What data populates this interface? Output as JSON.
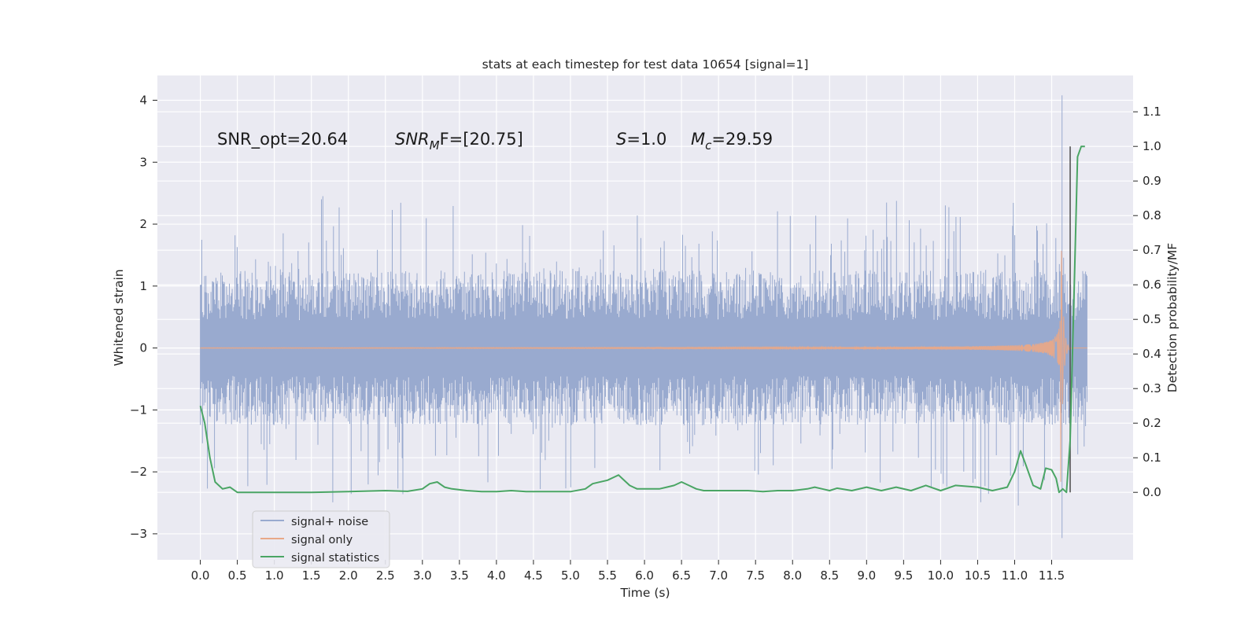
{
  "chart_data": {
    "type": "line",
    "title": "stats at each timestep for test data 10654 [signal=1]",
    "xlabel": "Time (s)",
    "ylabel_left": "Whitened strain",
    "ylabel_right": "Detection probability/MF",
    "xlim": [
      -0.58,
      12.6
    ],
    "ylim_left": [
      -3.42,
      4.4
    ],
    "ylim_right": [
      -0.195,
      1.205
    ],
    "grid": true,
    "legend_position": "lower-left",
    "x_ticks": [
      0.0,
      0.5,
      1.0,
      1.5,
      2.0,
      2.5,
      3.0,
      3.5,
      4.0,
      4.5,
      5.0,
      5.5,
      6.0,
      6.5,
      7.0,
      7.5,
      8.0,
      8.5,
      9.0,
      9.5,
      10.0,
      10.5,
      11.0,
      11.5
    ],
    "x_tick_labels": [
      "0.0",
      "0.5",
      "1.0",
      "1.5",
      "2.0",
      "2.5",
      "3.0",
      "3.5",
      "4.0",
      "4.5",
      "5.0",
      "5.5",
      "6.0",
      "6.5",
      "7.0",
      "7.5",
      "8.0",
      "8.5",
      "9.0",
      "9.5",
      "10.0",
      "10.5",
      "11.0",
      "11.5"
    ],
    "y_left_ticks": [
      -3,
      -2,
      -1,
      0,
      1,
      2,
      3,
      4
    ],
    "y_left_tick_labels": [
      "−3",
      "−2",
      "−1",
      "0",
      "1",
      "2",
      "3",
      "4"
    ],
    "y_right_ticks": [
      0.0,
      0.1,
      0.2,
      0.3,
      0.4,
      0.5,
      0.6,
      0.7,
      0.8,
      0.9,
      1.0,
      1.1
    ],
    "y_right_tick_labels": [
      "0.0",
      "0.1",
      "0.2",
      "0.3",
      "0.4",
      "0.5",
      "0.6",
      "0.7",
      "0.8",
      "0.9",
      "1.0",
      "1.1"
    ],
    "annotations": {
      "snr_opt": "SNR_opt=20.64",
      "snr_mf_label": "SNR",
      "snr_mf_sub": "M",
      "snr_mf_tail": "F=[20.75]",
      "s_label": "S",
      "s_tail": "=1.0",
      "mc_label": "M",
      "mc_sub": "c",
      "mc_tail": "=29.59"
    },
    "series": [
      {
        "name": "signal+ noise",
        "axis": "left",
        "color": "#99aacf",
        "x_range": [
          0.0,
          11.98
        ],
        "envelope": [
          [
            -2.3,
            1.9
          ],
          [
            -2.5,
            2.5
          ],
          [
            -2.5,
            2.3
          ],
          [
            -2.3,
            2.2
          ],
          [
            -2.0,
            2.0
          ],
          [
            -2.3,
            2.3
          ],
          [
            -2.4,
            2.4
          ],
          [
            -2.6,
            2.4
          ]
        ],
        "peak_max": 4.08,
        "peak_min": -3.07,
        "peak_time": 11.64
      },
      {
        "name": "signal only",
        "axis": "left",
        "color": "#e8a888",
        "x_range": [
          0.0,
          11.98
        ],
        "peak_max": 3.1,
        "peak_min": -2.8,
        "peak_time": 11.62
      },
      {
        "name": "signal statistics",
        "axis": "right",
        "color": "#4aa564",
        "x": [
          0.0,
          0.06,
          0.13,
          0.2,
          0.3,
          0.4,
          0.5,
          0.7,
          1.0,
          1.5,
          2.0,
          2.5,
          2.8,
          3.0,
          3.1,
          3.2,
          3.3,
          3.4,
          3.6,
          3.8,
          4.0,
          4.2,
          4.4,
          4.6,
          4.8,
          5.0,
          5.2,
          5.3,
          5.5,
          5.6,
          5.65,
          5.7,
          5.75,
          5.8,
          5.85,
          5.9,
          6.0,
          6.2,
          6.3,
          6.4,
          6.5,
          6.6,
          6.7,
          6.8,
          7.0,
          7.2,
          7.4,
          7.6,
          7.8,
          8.0,
          8.2,
          8.3,
          8.4,
          8.5,
          8.6,
          8.8,
          9.0,
          9.2,
          9.4,
          9.6,
          9.8,
          10.0,
          10.2,
          10.5,
          10.7,
          10.9,
          11.0,
          11.08,
          11.15,
          11.25,
          11.35,
          11.42,
          11.5,
          11.56,
          11.6,
          11.65,
          11.7,
          11.75,
          11.8,
          11.85,
          11.9,
          11.95
        ],
        "values": [
          0.25,
          0.2,
          0.1,
          0.03,
          0.01,
          0.015,
          0.0,
          0.0,
          0.0,
          0.0,
          0.002,
          0.005,
          0.003,
          0.01,
          0.025,
          0.03,
          0.015,
          0.01,
          0.005,
          0.002,
          0.002,
          0.005,
          0.002,
          0.002,
          0.002,
          0.002,
          0.01,
          0.025,
          0.035,
          0.045,
          0.05,
          0.04,
          0.03,
          0.02,
          0.015,
          0.01,
          0.01,
          0.01,
          0.015,
          0.02,
          0.03,
          0.02,
          0.01,
          0.005,
          0.005,
          0.005,
          0.005,
          0.002,
          0.005,
          0.005,
          0.01,
          0.015,
          0.01,
          0.005,
          0.012,
          0.005,
          0.015,
          0.005,
          0.015,
          0.005,
          0.02,
          0.005,
          0.02,
          0.015,
          0.005,
          0.015,
          0.06,
          0.12,
          0.08,
          0.02,
          0.01,
          0.07,
          0.065,
          0.04,
          0.0,
          0.01,
          0.0,
          0.15,
          0.55,
          0.97,
          1.0,
          1.0
        ]
      },
      {
        "name": "",
        "axis": "right",
        "color": "#555555",
        "x": [
          11.75,
          11.75
        ],
        "values": [
          0.0,
          1.0
        ]
      }
    ]
  }
}
